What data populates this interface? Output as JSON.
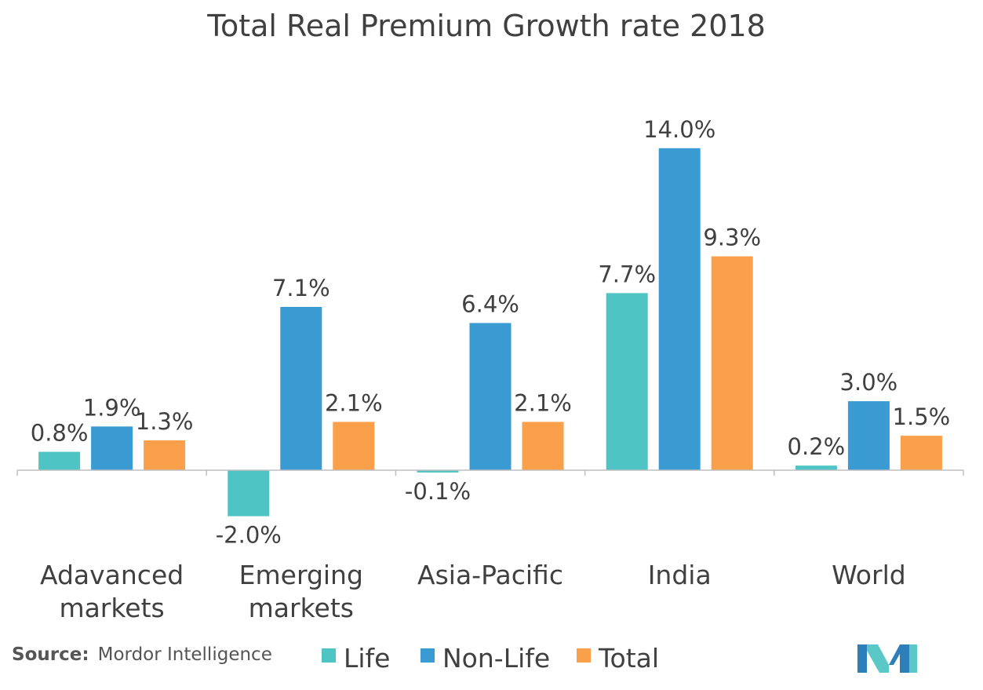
{
  "chart_data": {
    "type": "bar",
    "title": "Total Real Premium Growth rate 2018",
    "categories": [
      [
        "Adavanced",
        "markets"
      ],
      [
        "Emerging",
        "markets"
      ],
      [
        "Asia-Pacific"
      ],
      [
        "India"
      ],
      [
        "World"
      ]
    ],
    "series": [
      {
        "name": "Life",
        "color": "#4fc4c4",
        "values": [
          0.8,
          -2.0,
          -0.1,
          7.7,
          0.2
        ],
        "labels": [
          "0.8%",
          "-2.0%",
          "-0.1%",
          "7.7%",
          "0.2%"
        ]
      },
      {
        "name": "Non-Life",
        "color": "#3a9bd2",
        "values": [
          1.9,
          7.1,
          6.4,
          14.0,
          3.0
        ],
        "labels": [
          "1.9%",
          "7.1%",
          "6.4%",
          "14.0%",
          "3.0%"
        ]
      },
      {
        "name": "Total",
        "color": "#fba04a",
        "values": [
          1.3,
          2.1,
          2.1,
          9.3,
          1.5
        ],
        "labels": [
          "1.3%",
          "2.1%",
          "2.1%",
          "9.3%",
          "1.5%"
        ]
      }
    ],
    "xlabel": "",
    "ylabel": "",
    "ylim": [
      -2.5,
      15
    ],
    "grid": false,
    "legend": "bottom"
  },
  "source": {
    "label": "Source:",
    "text": "Mordor Intelligence"
  },
  "logo": {
    "icon": "mordor-intelligence-logo-icon"
  }
}
